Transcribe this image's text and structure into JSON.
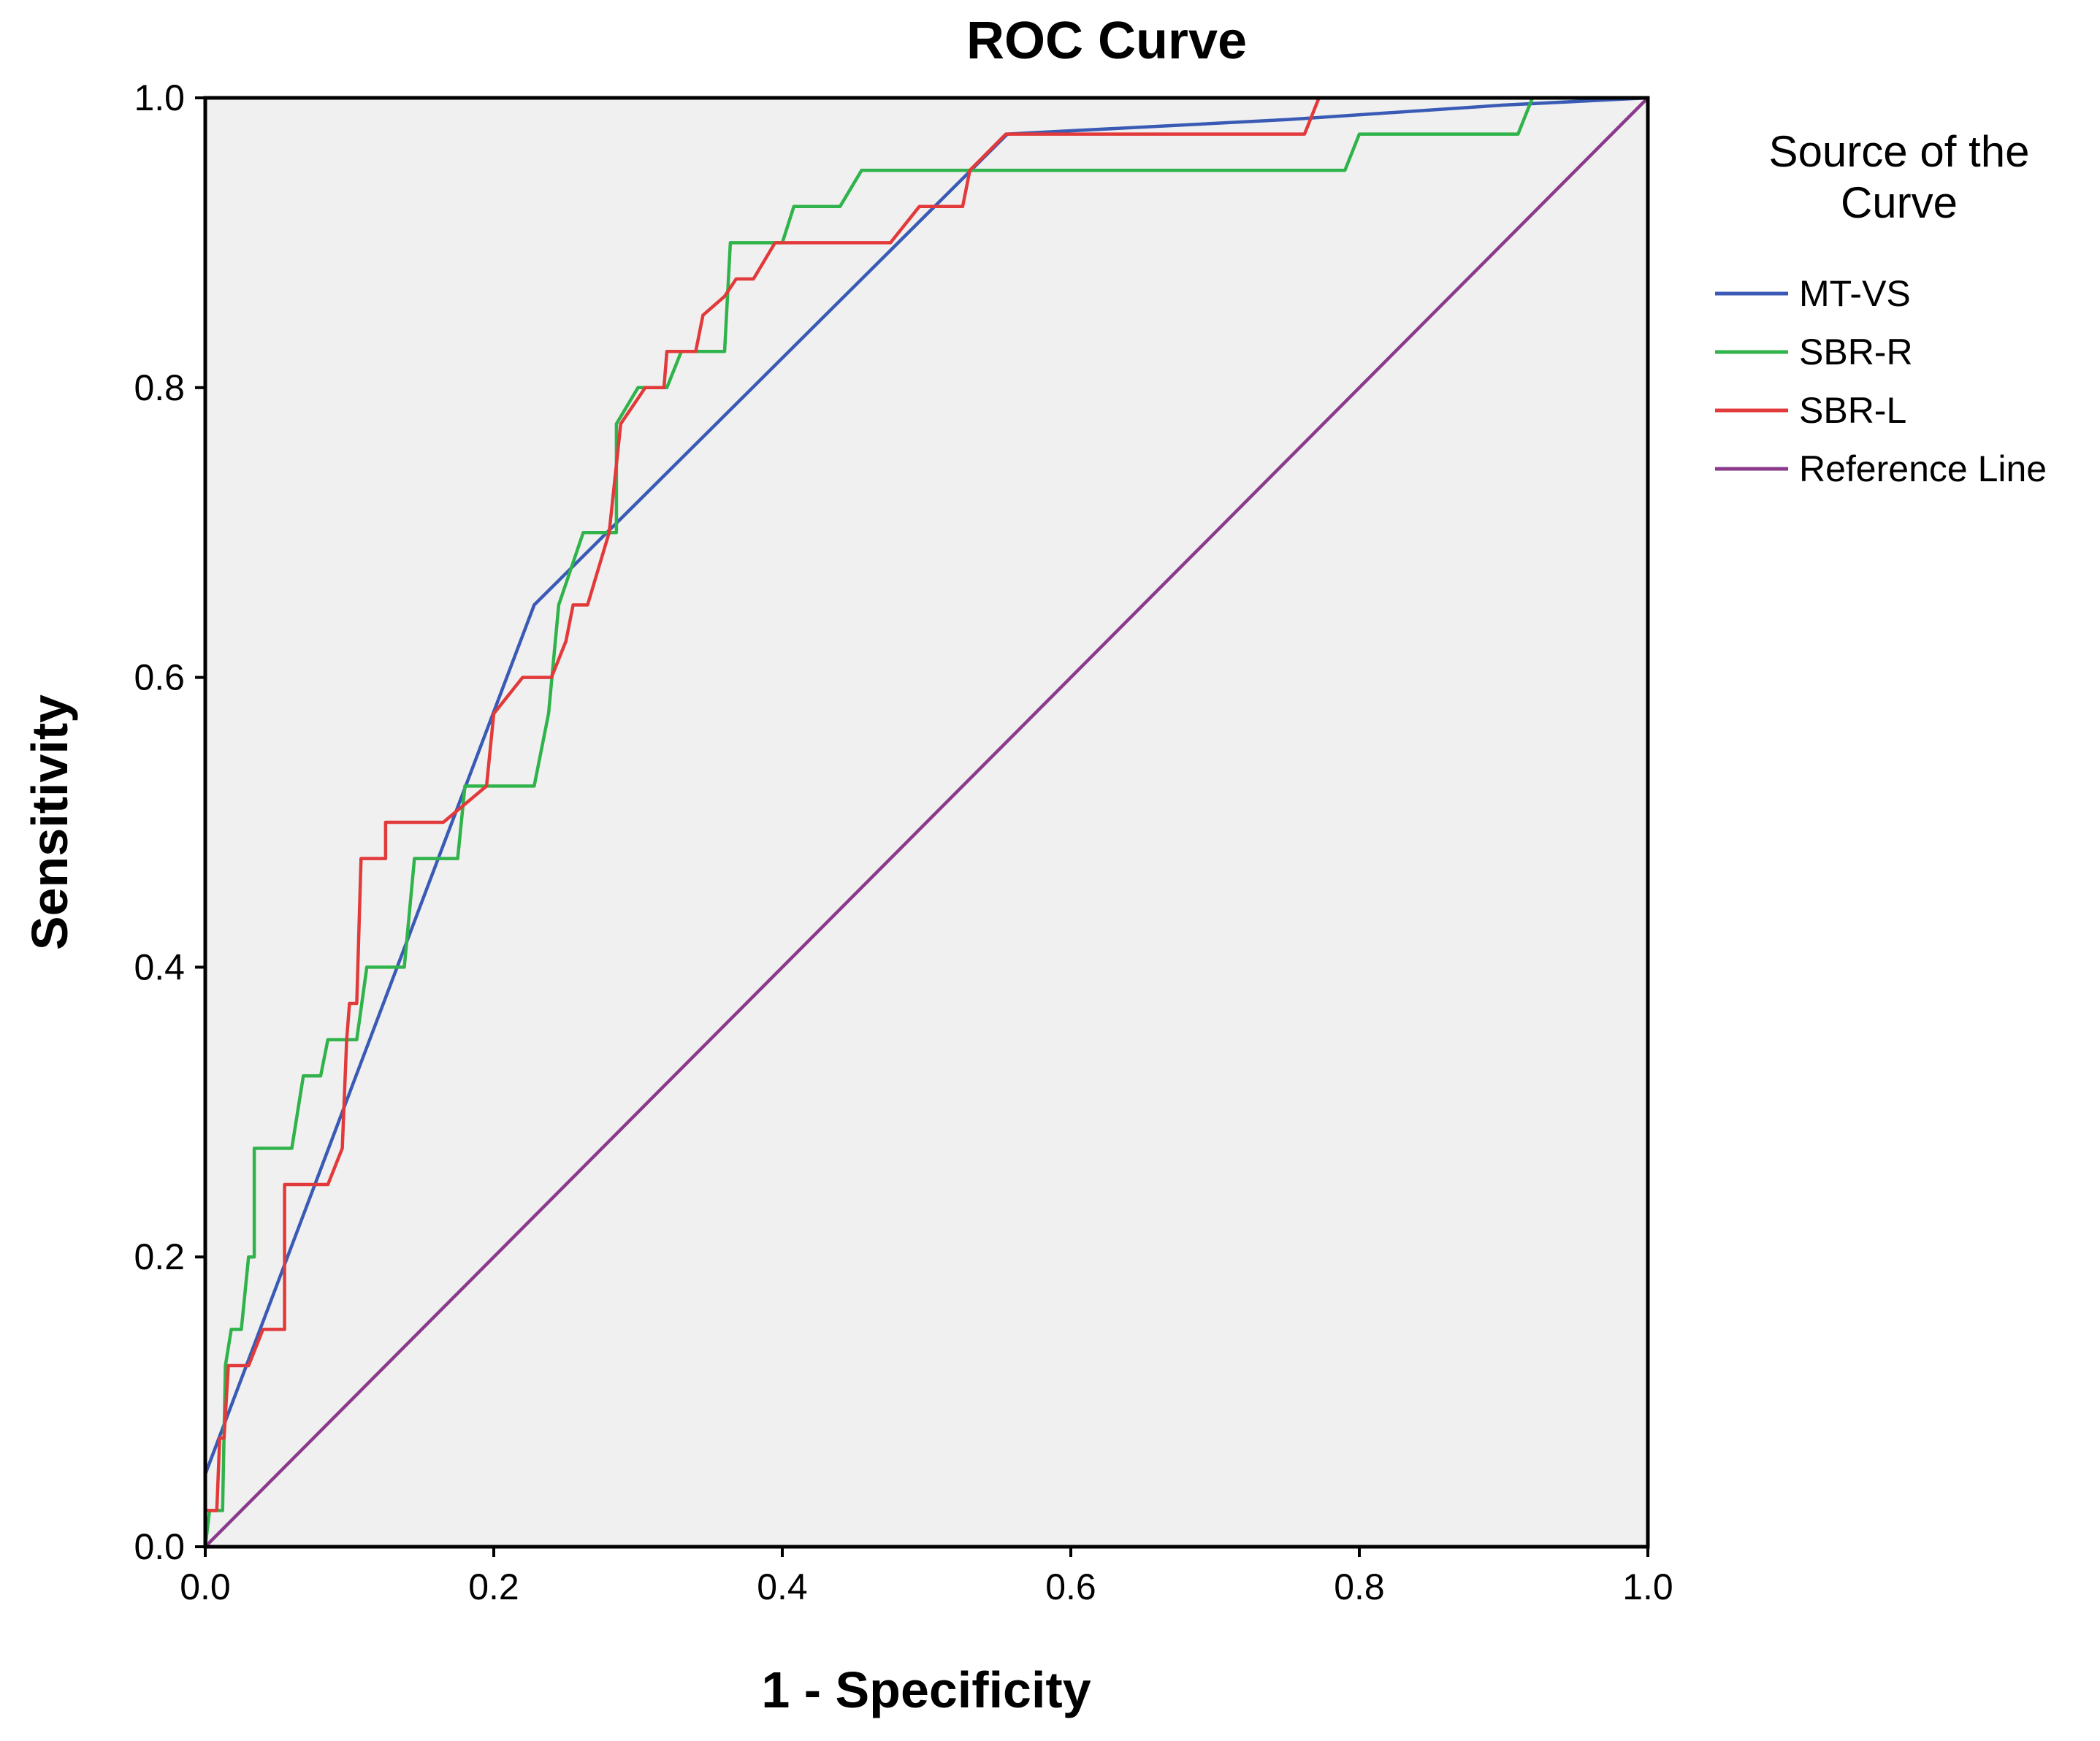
{
  "chart_data": {
    "type": "line",
    "title": "ROC Curve",
    "xlabel": "1 - Specificity",
    "ylabel": "Sensitivity",
    "xlim": [
      0.0,
      1.0
    ],
    "ylim": [
      0.0,
      1.0
    ],
    "xticks": [
      "0.0",
      "0.2",
      "0.4",
      "0.6",
      "0.8",
      "1.0"
    ],
    "yticks": [
      "0.0",
      "0.2",
      "0.4",
      "0.6",
      "0.8",
      "1.0"
    ],
    "grid": false,
    "background": "#f0f0f0",
    "legend": {
      "title_line1": "Source of the",
      "title_line2": "Curve",
      "position": "right"
    },
    "series": [
      {
        "name": "MT-VS",
        "color": "#3a5bb5",
        "points": [
          [
            0,
            0
          ],
          [
            0,
            0.05
          ],
          [
            0.228,
            0.65
          ],
          [
            0.556,
            0.975
          ],
          [
            0.75,
            0.985
          ],
          [
            0.9,
            0.995
          ],
          [
            1,
            1
          ]
        ]
      },
      {
        "name": "SBR-R",
        "color": "#2fb34a",
        "points": [
          [
            0,
            0
          ],
          [
            0.003,
            0.025
          ],
          [
            0.012,
            0.025
          ],
          [
            0.014,
            0.125
          ],
          [
            0.018,
            0.15
          ],
          [
            0.025,
            0.15
          ],
          [
            0.03,
            0.2
          ],
          [
            0.034,
            0.2
          ],
          [
            0.034,
            0.275
          ],
          [
            0.06,
            0.275
          ],
          [
            0.068,
            0.325
          ],
          [
            0.08,
            0.325
          ],
          [
            0.085,
            0.35
          ],
          [
            0.105,
            0.35
          ],
          [
            0.112,
            0.4
          ],
          [
            0.138,
            0.4
          ],
          [
            0.145,
            0.475
          ],
          [
            0.175,
            0.475
          ],
          [
            0.18,
            0.525
          ],
          [
            0.228,
            0.525
          ],
          [
            0.238,
            0.575
          ],
          [
            0.245,
            0.65
          ],
          [
            0.262,
            0.7
          ],
          [
            0.285,
            0.7
          ],
          [
            0.285,
            0.775
          ],
          [
            0.3,
            0.8
          ],
          [
            0.32,
            0.8
          ],
          [
            0.33,
            0.825
          ],
          [
            0.36,
            0.825
          ],
          [
            0.364,
            0.9
          ],
          [
            0.4,
            0.9
          ],
          [
            0.408,
            0.925
          ],
          [
            0.44,
            0.925
          ],
          [
            0.455,
            0.95
          ],
          [
            0.79,
            0.95
          ],
          [
            0.8,
            0.975
          ],
          [
            0.91,
            0.975
          ],
          [
            0.92,
            1.0
          ],
          [
            1,
            1
          ]
        ]
      },
      {
        "name": "SBR-L",
        "color": "#e23a3a",
        "points": [
          [
            0,
            0
          ],
          [
            0,
            0.025
          ],
          [
            0.008,
            0.025
          ],
          [
            0.01,
            0.075
          ],
          [
            0.013,
            0.075
          ],
          [
            0.016,
            0.125
          ],
          [
            0.03,
            0.125
          ],
          [
            0.04,
            0.15
          ],
          [
            0.055,
            0.15
          ],
          [
            0.055,
            0.25
          ],
          [
            0.085,
            0.25
          ],
          [
            0.095,
            0.275
          ],
          [
            0.098,
            0.35
          ],
          [
            0.1,
            0.375
          ],
          [
            0.105,
            0.375
          ],
          [
            0.108,
            0.475
          ],
          [
            0.125,
            0.475
          ],
          [
            0.125,
            0.5
          ],
          [
            0.165,
            0.5
          ],
          [
            0.195,
            0.525
          ],
          [
            0.2,
            0.575
          ],
          [
            0.22,
            0.6
          ],
          [
            0.24,
            0.6
          ],
          [
            0.25,
            0.625
          ],
          [
            0.255,
            0.65
          ],
          [
            0.265,
            0.65
          ],
          [
            0.28,
            0.7
          ],
          [
            0.288,
            0.775
          ],
          [
            0.305,
            0.8
          ],
          [
            0.318,
            0.8
          ],
          [
            0.32,
            0.825
          ],
          [
            0.34,
            0.825
          ],
          [
            0.345,
            0.85
          ],
          [
            0.36,
            0.863
          ],
          [
            0.368,
            0.875
          ],
          [
            0.38,
            0.875
          ],
          [
            0.395,
            0.9
          ],
          [
            0.475,
            0.9
          ],
          [
            0.495,
            0.925
          ],
          [
            0.525,
            0.925
          ],
          [
            0.53,
            0.95
          ],
          [
            0.555,
            0.975
          ],
          [
            0.762,
            0.975
          ],
          [
            0.772,
            1.0
          ],
          [
            1,
            1
          ]
        ]
      },
      {
        "name": "Reference Line",
        "color": "#8b3a8b",
        "points": [
          [
            0,
            0
          ],
          [
            1,
            1
          ]
        ]
      }
    ]
  }
}
